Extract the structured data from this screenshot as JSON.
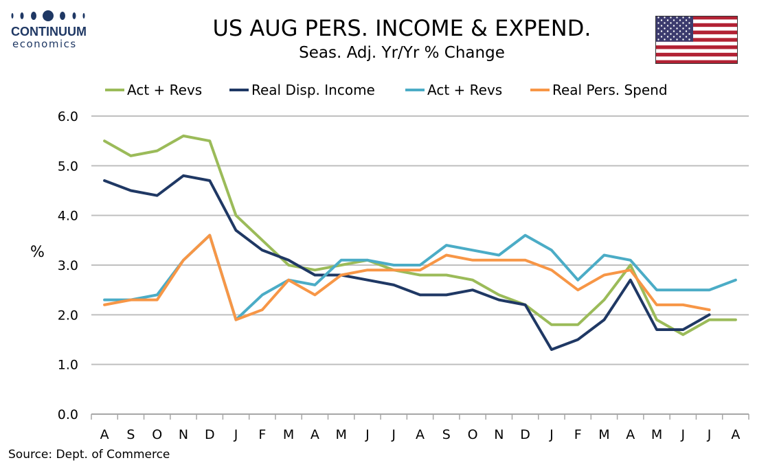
{
  "header": {
    "title": "US AUG PERS. INCOME & EXPEND.",
    "subtitle": "Seas. Adj. Yr/Yr % Change"
  },
  "logo": {
    "name": "CONTINUUM",
    "sub": "economics",
    "color": "#1f3864"
  },
  "flag": {
    "icon": "us-flag-icon"
  },
  "source": "Source: Dept. of Commerce",
  "chart_data": {
    "type": "line",
    "categories": [
      "A",
      "S",
      "O",
      "N",
      "D",
      "J",
      "F",
      "M",
      "A",
      "M",
      "J",
      "J",
      "A",
      "S",
      "O",
      "N",
      "D",
      "J",
      "F",
      "M",
      "A",
      "M",
      "J",
      "J",
      "A"
    ],
    "ylabel": "%",
    "ylim": [
      0,
      6
    ],
    "yticks": [
      "0.0",
      "1.0",
      "2.0",
      "3.0",
      "4.0",
      "5.0",
      "6.0"
    ],
    "grid": true,
    "legend_position": "top",
    "series": [
      {
        "name": "Act + Revs",
        "color": "#9bbb59",
        "values": [
          5.5,
          5.2,
          5.3,
          5.6,
          5.5,
          4.0,
          3.5,
          3.0,
          2.9,
          3.0,
          3.1,
          2.9,
          2.8,
          2.8,
          2.7,
          2.4,
          2.2,
          1.8,
          1.8,
          2.3,
          3.0,
          1.9,
          1.6,
          1.9,
          1.9
        ]
      },
      {
        "name": "Real Disp. Income",
        "color": "#1f3864",
        "values": [
          4.7,
          4.5,
          4.4,
          4.8,
          4.7,
          3.7,
          3.3,
          3.1,
          2.8,
          2.8,
          2.7,
          2.6,
          2.4,
          2.4,
          2.5,
          2.3,
          2.2,
          1.3,
          1.5,
          1.9,
          2.7,
          1.7,
          1.7,
          2.0,
          null
        ]
      },
      {
        "name": "Act + Revs",
        "color": "#4bacc6",
        "values": [
          2.3,
          2.3,
          2.4,
          3.1,
          3.6,
          1.9,
          2.4,
          2.7,
          2.6,
          3.1,
          3.1,
          3.0,
          3.0,
          3.4,
          3.3,
          3.2,
          3.6,
          3.3,
          2.7,
          3.2,
          3.1,
          2.5,
          2.5,
          2.5,
          2.7
        ]
      },
      {
        "name": "Real Pers. Spend",
        "color": "#f79646",
        "values": [
          2.2,
          2.3,
          2.3,
          3.1,
          3.6,
          1.9,
          2.1,
          2.7,
          2.4,
          2.8,
          2.9,
          2.9,
          2.9,
          3.2,
          3.1,
          3.1,
          3.1,
          2.9,
          2.5,
          2.8,
          2.9,
          2.2,
          2.2,
          2.1,
          null
        ]
      }
    ]
  }
}
